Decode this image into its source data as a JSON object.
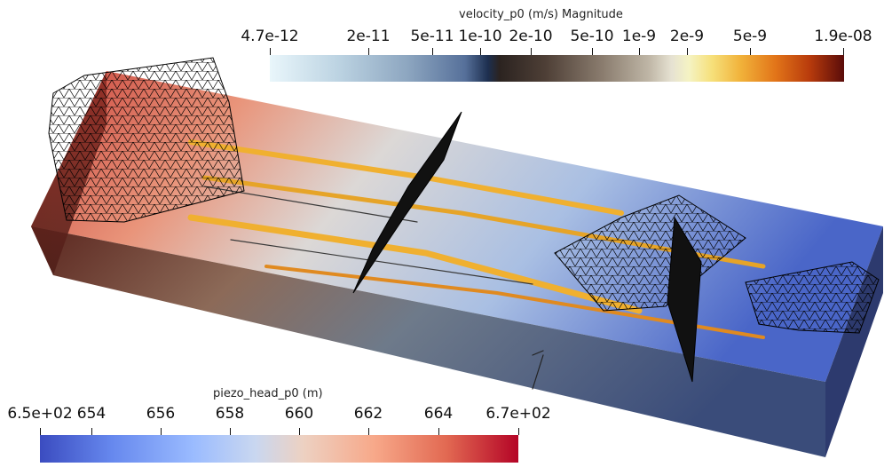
{
  "velocity_legend": {
    "title": "velocity_p0 (m/s) Magnitude",
    "ticks": [
      "4.7e-12",
      "2e-11",
      "5e-11",
      "1e-10",
      "2e-10",
      "5e-10",
      "1e-9",
      "2e-9",
      "5e-9",
      "1.9e-08"
    ],
    "colors": [
      "#e9f6fb",
      "#1d2f4f",
      "#2b2320",
      "#e6e2d2",
      "#f1b23a",
      "#5a0c0a"
    ]
  },
  "head_legend": {
    "title": "piezo_head_p0 (m)",
    "ticks": [
      "6.5e+02",
      "654",
      "656",
      "658",
      "660",
      "662",
      "664",
      "6.7e+02"
    ],
    "colors": [
      "#3b4cc0",
      "#9abbff",
      "#dddddd",
      "#f7a889",
      "#b40426"
    ]
  },
  "scene": {
    "block_top_colors": [
      "#c9413a",
      "#e9947a",
      "#dcd8d6",
      "#a9bfe3",
      "#5b79cf"
    ],
    "block_side_colors": [
      "#5a241d",
      "#8c6a58",
      "#6e7a8a",
      "#3a4c7a"
    ],
    "streak_color": "#f0b030"
  }
}
